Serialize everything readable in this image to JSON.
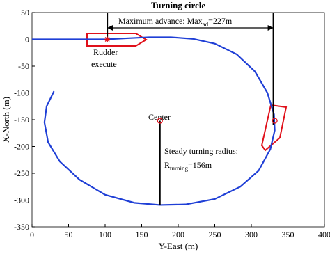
{
  "chart_data": {
    "type": "line",
    "title": "Turning circle",
    "x_label": "Y-East (m)",
    "y_label": "X-North (m)",
    "xlim": [
      0,
      400
    ],
    "ylim": [
      -350,
      50
    ],
    "xticks": [
      0,
      50,
      100,
      150,
      200,
      250,
      300,
      350,
      400
    ],
    "yticks": [
      50,
      0,
      -50,
      -100,
      -150,
      -200,
      -250,
      -300,
      -350
    ],
    "grid": false,
    "series": [
      {
        "color": "#1f3fd6",
        "x": [
          0,
          50,
          100,
          130,
          160,
          190,
          220,
          250,
          280,
          305,
          322,
          331,
          332,
          326,
          310,
          285,
          250,
          210,
          175,
          140,
          100,
          65,
          38,
          22,
          17,
          20,
          30
        ],
        "values": [
          0,
          0,
          0,
          2,
          4,
          4,
          1,
          -8,
          -28,
          -60,
          -100,
          -140,
          -170,
          -205,
          -245,
          -275,
          -298,
          -308,
          -309,
          -305,
          -290,
          -262,
          -228,
          -192,
          -155,
          -125,
          -97
        ]
      }
    ],
    "points": {
      "rudder": [
        103,
        0
      ],
      "center": [
        175,
        -152
      ],
      "ship": [
        332,
        -152
      ]
    },
    "annotations": {
      "advance": [
        "Maximum advance: Max",
        "ad",
        "=227m"
      ],
      "rudder": [
        "Rudder",
        "execute"
      ],
      "center": "Center",
      "radius": [
        "Steady turning radius:",
        "R",
        "turning",
        "=156m"
      ]
    }
  }
}
